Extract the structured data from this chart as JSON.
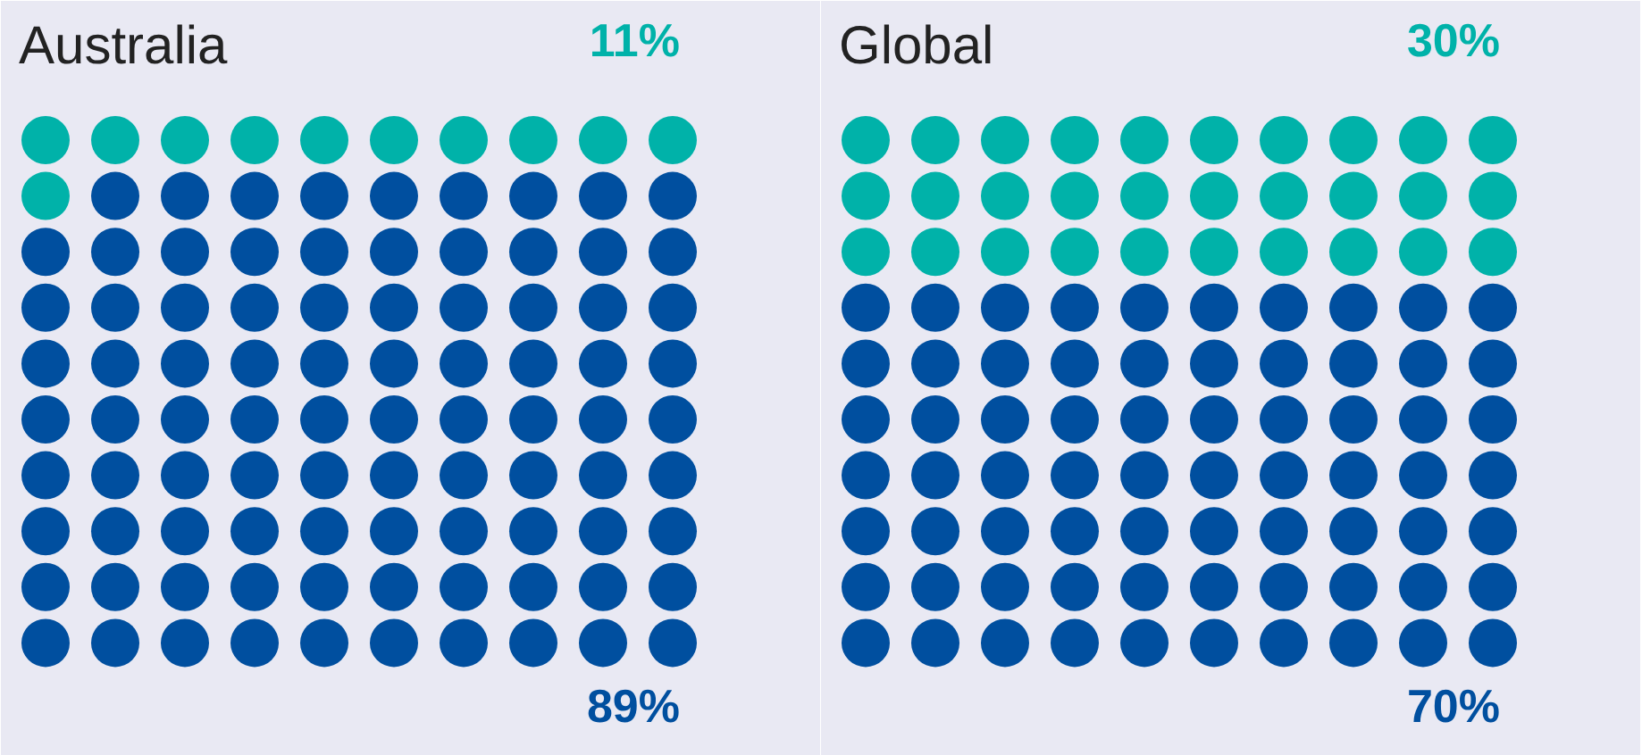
{
  "chart_data": [
    {
      "type": "other",
      "title": "Australia",
      "categories": [
        null,
        null
      ],
      "values": [
        11,
        89
      ],
      "colors": [
        "#00b2a9",
        "#004f9f"
      ],
      "value_labels": [
        "11%",
        "89%"
      ]
    },
    {
      "type": "other",
      "title": "Global",
      "categories": [
        null,
        null
      ],
      "values": [
        30,
        70
      ],
      "colors": [
        "#00b2a9",
        "#004f9f"
      ],
      "value_labels": [
        "30%",
        "70%"
      ]
    }
  ]
}
